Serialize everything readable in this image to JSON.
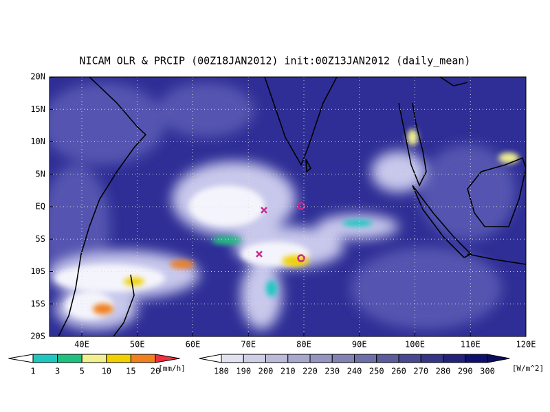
{
  "title": "NICAM OLR & PRCIP (00Z18JAN2012) init:00Z13JAN2012 (daily_mean)",
  "map": {
    "lat_labels": [
      "20N",
      "15N",
      "10N",
      "5N",
      "EQ",
      "5S",
      "10S",
      "15S",
      "20S"
    ],
    "lon_labels": [
      "40E",
      "50E",
      "60E",
      "70E",
      "80E",
      "90E",
      "100E",
      "110E",
      "120E"
    ]
  },
  "legend": {
    "precip": {
      "labels": [
        1,
        3,
        5,
        10,
        15,
        20
      ],
      "unit": "[mm/h]"
    },
    "olr": {
      "labels": [
        180,
        190,
        200,
        210,
        220,
        230,
        240,
        250,
        260,
        270,
        280,
        290,
        300
      ],
      "unit": "[W/m^2]"
    }
  }
}
